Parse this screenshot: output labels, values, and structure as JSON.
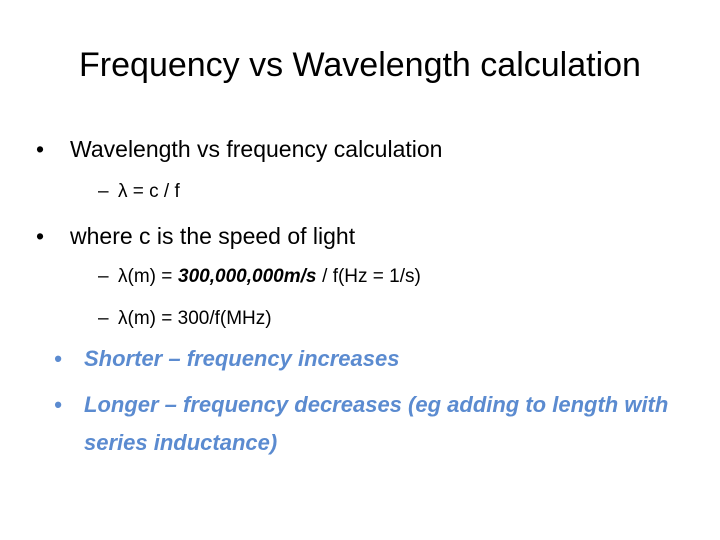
{
  "slide": {
    "title": "Frequency vs Wavelength calculation",
    "bullets": [
      {
        "text": "Wavelength vs frequency calculation",
        "subitems": [
          {
            "parts": [
              "λ = c / f"
            ]
          }
        ]
      },
      {
        "text": "where c is the speed of light",
        "subitems": [
          {
            "parts": [
              "λ(m) =",
              "300,000,000m/s",
              "/ f(Hz = 1/s)"
            ]
          },
          {
            "parts": [
              "λ(m) = 300/f(MHz)"
            ]
          }
        ]
      },
      {
        "text": "Shorter – frequency increases",
        "subitems": []
      },
      {
        "text": "Longer – frequency decreases (eg adding to length with series inductance)",
        "subitems": []
      }
    ]
  }
}
